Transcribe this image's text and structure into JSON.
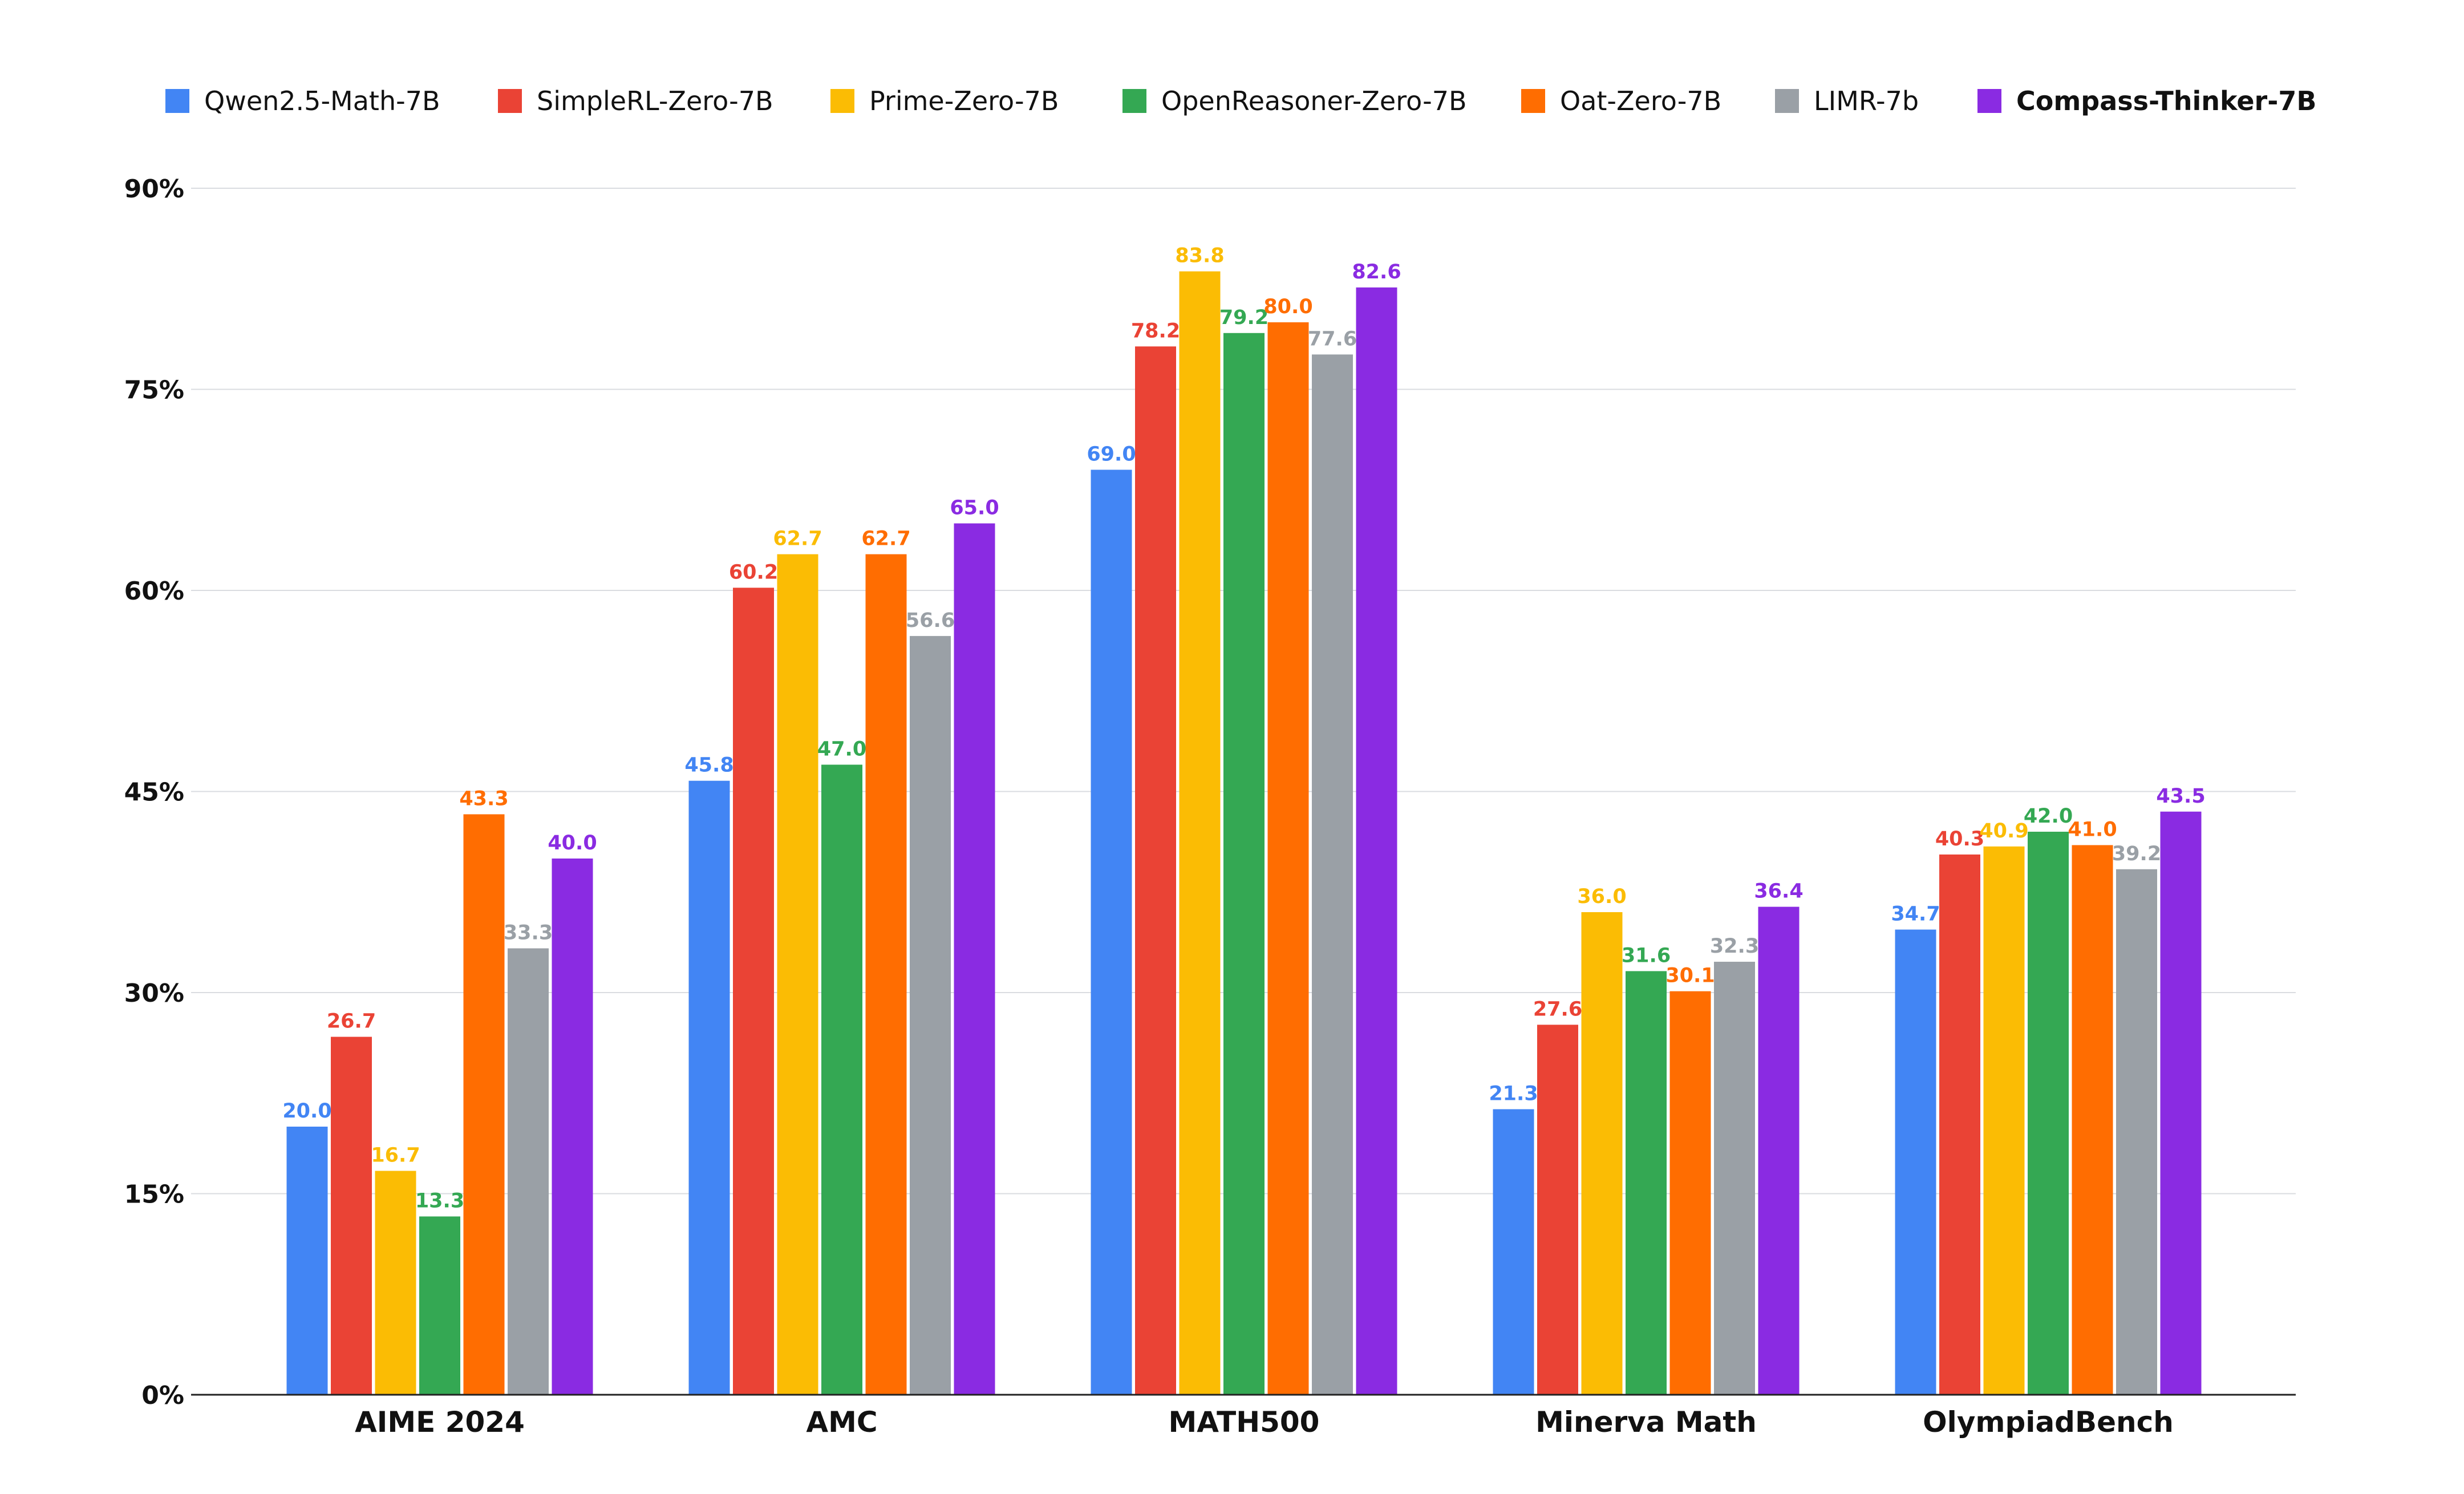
{
  "chart_data": {
    "type": "bar",
    "title": "",
    "xlabel": "",
    "ylabel": "",
    "ylim": [
      0,
      90
    ],
    "yticks": [
      0,
      15,
      30,
      45,
      60,
      75,
      90
    ],
    "ytick_labels": [
      "0%",
      "15%",
      "30%",
      "45%",
      "60%",
      "75%",
      "90%"
    ],
    "grid": "horizontal",
    "legend_position": "top",
    "categories": [
      "AIME 2024",
      "AMC",
      "MATH500",
      "Minerva Math",
      "OlympiadBench"
    ],
    "series": [
      {
        "name": "Qwen2.5-Math-7B",
        "color": "#4285F4",
        "values": [
          20.0,
          45.8,
          69.0,
          21.3,
          34.7
        ],
        "labels": [
          "20.0",
          "45.8",
          "69.0",
          "21.3",
          "34.7"
        ]
      },
      {
        "name": "SimpleRL-Zero-7B",
        "color": "#EA4335",
        "values": [
          26.7,
          60.2,
          78.2,
          27.6,
          40.3
        ],
        "labels": [
          "26.7",
          "60.2",
          "78.2",
          "27.6",
          "40.3"
        ]
      },
      {
        "name": "Prime-Zero-7B",
        "color": "#FBBC04",
        "values": [
          16.7,
          62.7,
          83.8,
          36.0,
          40.9
        ],
        "labels": [
          "16.7",
          "62.7",
          "83.8",
          "36.0",
          "40.9"
        ]
      },
      {
        "name": "OpenReasoner-Zero-7B",
        "color": "#34A853",
        "values": [
          13.3,
          47.0,
          79.2,
          31.6,
          42.0
        ],
        "labels": [
          "13.3",
          "47.0",
          "79.2",
          "31.6",
          "42.0"
        ]
      },
      {
        "name": "Oat-Zero-7B",
        "color": "#FF6D01",
        "values": [
          43.3,
          62.7,
          80.0,
          30.1,
          41.0
        ],
        "labels": [
          "43.3",
          "62.7",
          "80.0",
          "30.1",
          "41.0"
        ]
      },
      {
        "name": "LIMR-7b",
        "color": "#9AA0A6",
        "values": [
          33.3,
          56.6,
          77.6,
          32.3,
          39.2
        ],
        "labels": [
          "33.3",
          "56.6",
          "77.6",
          "32.3",
          "39.2"
        ]
      },
      {
        "name": "Compass-Thinker-7B",
        "color": "#8A2BE2",
        "values": [
          40.0,
          65.0,
          82.6,
          36.4,
          43.5
        ],
        "labels": [
          "40.0",
          "65.0",
          "82.6",
          "36.4",
          "43.5"
        ],
        "emphasized": true
      }
    ]
  }
}
